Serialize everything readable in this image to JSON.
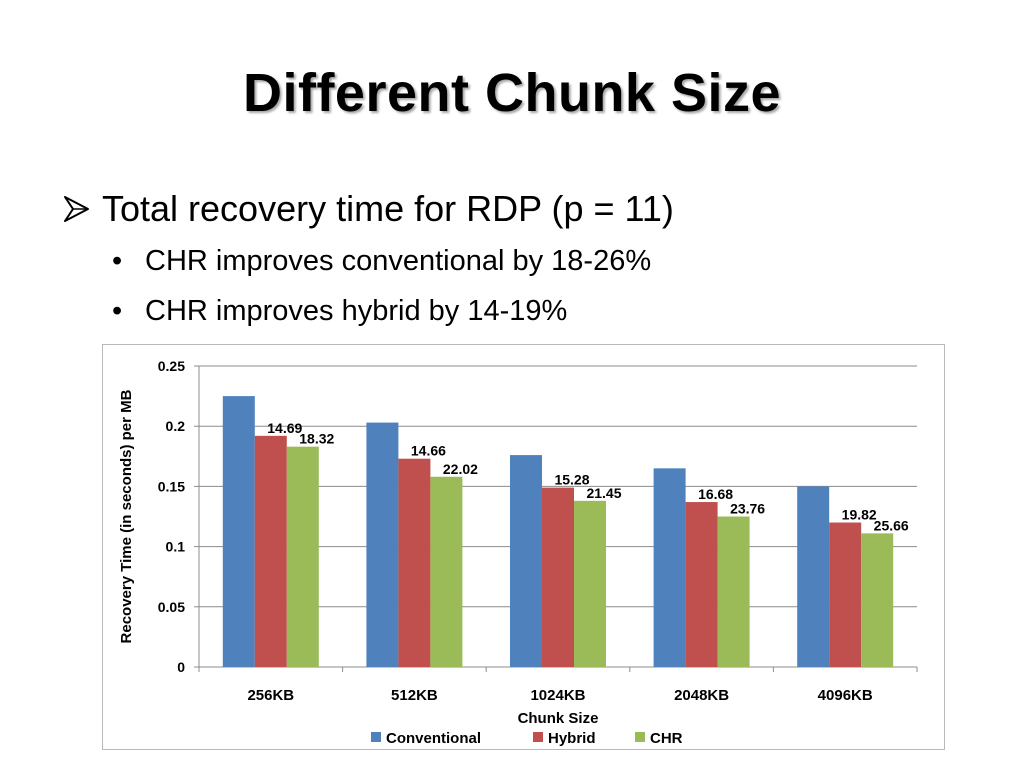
{
  "slide": {
    "title": "Different Chunk Size",
    "bullet_main": "Total recovery time for RDP (p = 11)",
    "bullets_sub": [
      "CHR improves conventional by 18-26%",
      "CHR improves hybrid by 14-19%"
    ],
    "sub_bullet_glyph": "•",
    "main_bullet_icon": "arrow-bullet-icon"
  },
  "chart_data": {
    "type": "bar",
    "title": "",
    "xlabel": "Chunk Size",
    "ylabel": "Recovery   Time (in seconds) per MB",
    "ylim": [
      0,
      0.25
    ],
    "yticks": [
      "0",
      "0.05",
      "0.1",
      "0.15",
      "0.2",
      "0.25"
    ],
    "grid": true,
    "legend_position": "bottom",
    "categories": [
      "256KB",
      "512KB",
      "1024KB",
      "2048KB",
      "4096KB"
    ],
    "series": [
      {
        "name": "Conventional",
        "color": "#4f81bd",
        "values": [
          0.225,
          0.203,
          0.176,
          0.165,
          0.15
        ],
        "labels": [
          "",
          "",
          "",
          "",
          ""
        ]
      },
      {
        "name": "Hybrid",
        "color": "#c0504d",
        "values": [
          0.192,
          0.173,
          0.149,
          0.137,
          0.12
        ],
        "labels": [
          "14.69",
          "14.66",
          "15.28",
          "16.68",
          "19.82"
        ]
      },
      {
        "name": "CHR",
        "color": "#9bbb59",
        "values": [
          0.183,
          0.158,
          0.138,
          0.125,
          0.111
        ],
        "labels": [
          "18.32",
          "22.02",
          "21.45",
          "23.76",
          "25.66"
        ]
      }
    ]
  }
}
